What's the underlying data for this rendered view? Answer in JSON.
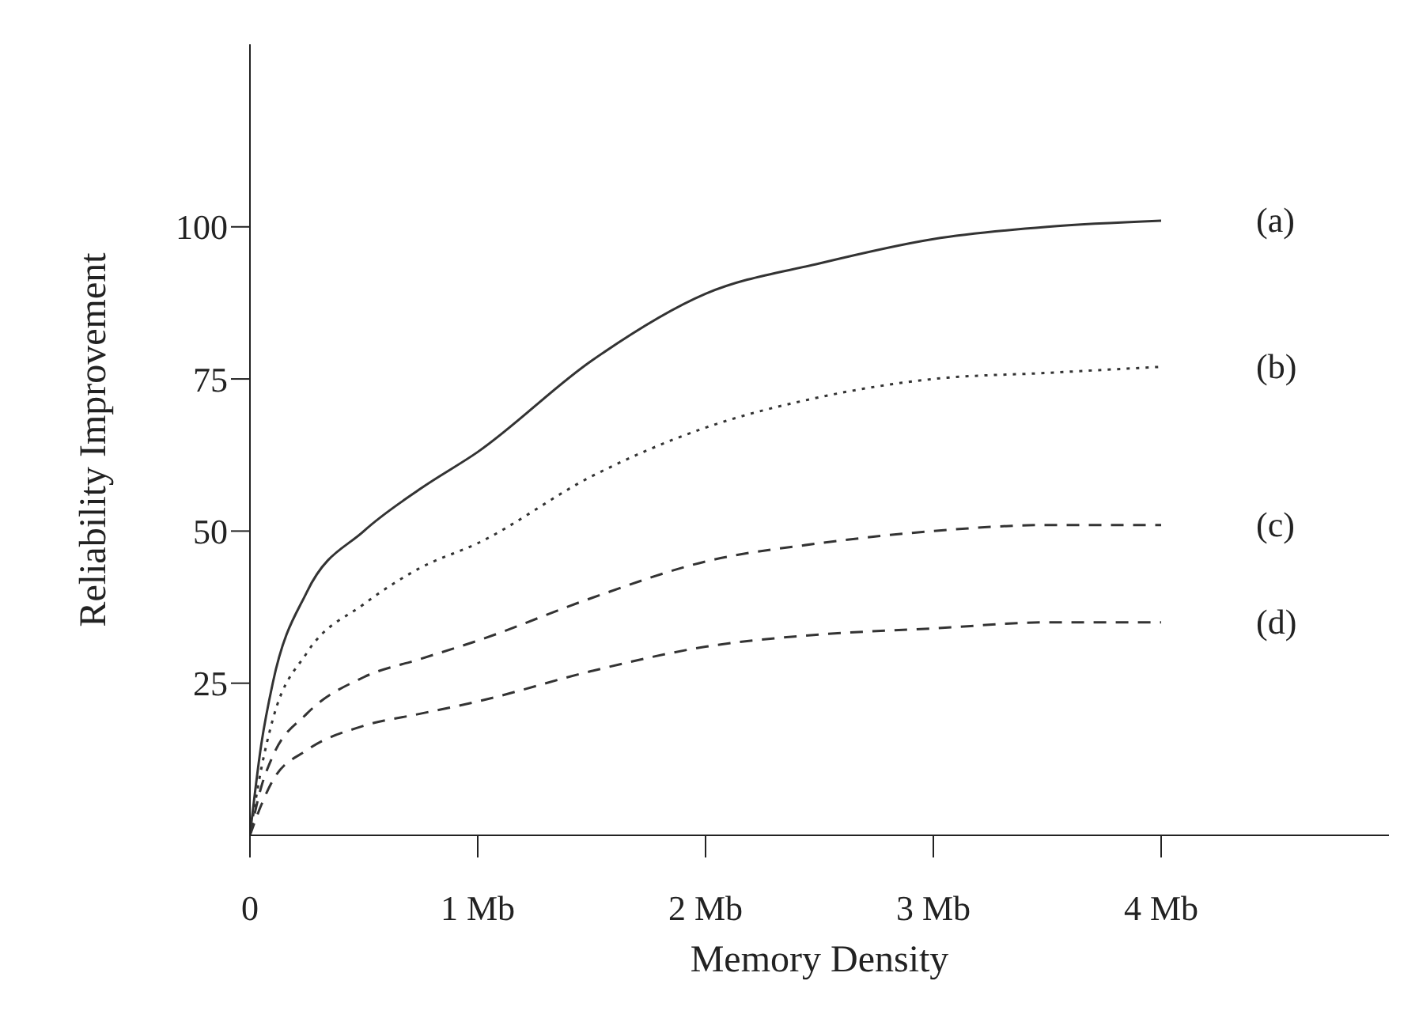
{
  "chart_data": {
    "type": "line",
    "xlabel": "Memory Density",
    "ylabel": "Reliability Improvement",
    "x": [
      0,
      0.05,
      0.1,
      0.25,
      0.5,
      0.75,
      1,
      1.5,
      2,
      2.5,
      3,
      3.5,
      4
    ],
    "series": [
      {
        "name": "(a)",
        "color": "#333333",
        "line_style": "solid",
        "values": [
          0,
          15,
          25,
          40,
          50,
          57,
          63,
          78,
          89,
          94,
          98,
          100,
          101
        ]
      },
      {
        "name": "(b)",
        "color": "#333333",
        "line_style": "dotted",
        "values": [
          0,
          11,
          19,
          30,
          38,
          44,
          48,
          59,
          67,
          72,
          75,
          76,
          77
        ]
      },
      {
        "name": "(c)",
        "color": "#333333",
        "line_style": "dashed",
        "values": [
          0,
          8,
          13,
          20,
          26,
          29,
          32,
          39,
          45,
          48,
          50,
          51,
          51
        ]
      },
      {
        "name": "(d)",
        "color": "#333333",
        "line_style": "dashed",
        "values": [
          0,
          5,
          9,
          14,
          18,
          20,
          22,
          27,
          31,
          33,
          34,
          35,
          35
        ]
      }
    ],
    "xlim": [
      0,
      5
    ],
    "xticks": [
      {
        "value": 0,
        "label": "0"
      },
      {
        "value": 1,
        "label": "1 Mb"
      },
      {
        "value": 2,
        "label": "2 Mb"
      },
      {
        "value": 3,
        "label": "3 Mb"
      },
      {
        "value": 4,
        "label": "4 Mb"
      }
    ],
    "ylim": [
      0,
      130
    ],
    "yticks": [
      25,
      50,
      75,
      100
    ],
    "grid": false,
    "legend": false,
    "marker": "none"
  }
}
